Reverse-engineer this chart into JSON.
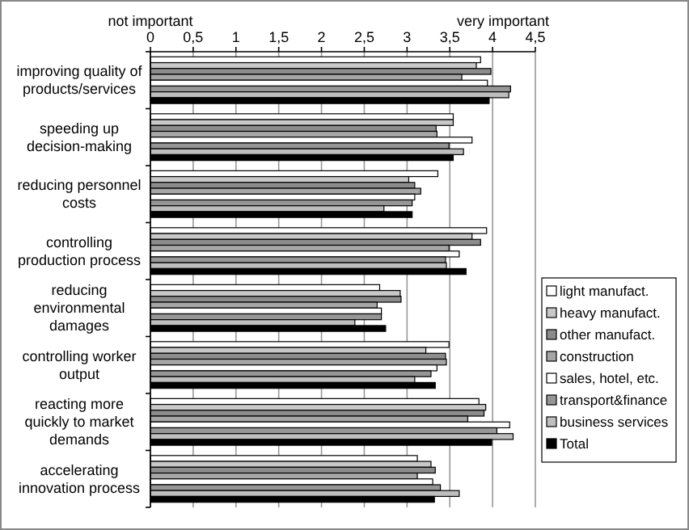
{
  "chart_data": {
    "type": "bar",
    "orientation": "horizontal",
    "categories": [
      "improving quality of products/services",
      "speeding up decision-making",
      "reducing personnel costs",
      "controlling  production process",
      "reducing environmental damages",
      "controlling worker output",
      "reacting more quickly to market demands",
      "accelerating innovation process"
    ],
    "series": [
      {
        "name": "light manufact.",
        "color": "#ffffff",
        "values": [
          3.86,
          3.54,
          3.36,
          3.93,
          2.68,
          3.49,
          3.84,
          3.12
        ]
      },
      {
        "name": "heavy manufact.",
        "color": "#c8c8c8",
        "values": [
          3.81,
          3.54,
          3.02,
          3.76,
          2.92,
          3.22,
          3.92,
          3.28
        ]
      },
      {
        "name": "other manufact.",
        "color": "#8c8c8c",
        "values": [
          3.98,
          3.34,
          3.09,
          3.86,
          2.93,
          3.45,
          3.9,
          3.33
        ]
      },
      {
        "name": "construction",
        "color": "#a6a6a6",
        "values": [
          3.64,
          3.35,
          3.16,
          3.49,
          2.65,
          3.46,
          3.71,
          3.12
        ]
      },
      {
        "name": "sales, hotel, etc.",
        "color": "#ffffff",
        "values": [
          3.94,
          3.76,
          3.09,
          3.61,
          2.7,
          3.35,
          4.2,
          3.3
        ]
      },
      {
        "name": "transport&finance",
        "color": "#969696",
        "values": [
          4.21,
          3.49,
          3.06,
          3.45,
          2.7,
          3.28,
          4.05,
          3.39
        ]
      },
      {
        "name": "business services",
        "color": "#bebebe",
        "values": [
          4.19,
          3.66,
          2.73,
          3.46,
          2.39,
          3.09,
          4.24,
          3.61
        ]
      },
      {
        "name": "Total",
        "color": "#000000",
        "values": [
          3.96,
          3.54,
          3.06,
          3.69,
          2.75,
          3.33,
          3.99,
          3.32
        ]
      }
    ],
    "xlim": [
      0,
      4.5
    ],
    "xticks": [
      0,
      {
        "value": 0.5,
        "label": "0,5"
      },
      1,
      {
        "value": 1.5,
        "label": "1,5"
      },
      2,
      {
        "value": 2.5,
        "label": "2,5"
      },
      3,
      {
        "value": 3.5,
        "label": "3,5"
      },
      4,
      {
        "value": 4.5,
        "label": "4,5"
      }
    ],
    "annotations": [
      "not important",
      "very important"
    ],
    "grid": "x",
    "legend": "right"
  }
}
